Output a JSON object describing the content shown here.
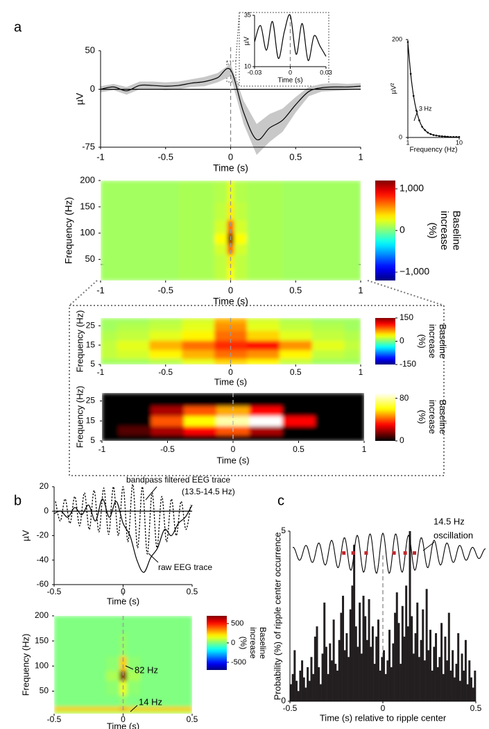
{
  "chart_data": [
    {
      "type": "line",
      "panel": "a",
      "xlabel": "Time (s)",
      "ylabel": "µV",
      "xlim": [
        -1,
        1
      ],
      "xticks": [
        -1,
        -0.5,
        0,
        0.5,
        1
      ],
      "ylim": [
        -75,
        50
      ],
      "yticks": [
        -75,
        0,
        50
      ],
      "series": [
        {
          "color": "#000000",
          "band_color": "#c8c8c8",
          "x": [
            -1,
            -0.9,
            -0.8,
            -0.7,
            -0.6,
            -0.5,
            -0.4,
            -0.3,
            -0.2,
            -0.1,
            0,
            0.1,
            0.2,
            0.3,
            0.4,
            0.5,
            0.6,
            0.7,
            0.8,
            0.9,
            1
          ],
          "values": [
            0,
            3,
            -2,
            5,
            5,
            4,
            5,
            8,
            10,
            15,
            25,
            -30,
            -65,
            -50,
            -40,
            -20,
            -3,
            2,
            3,
            3,
            4
          ],
          "error": [
            4,
            4,
            5,
            5,
            5,
            5,
            5,
            5,
            6,
            6,
            8,
            15,
            20,
            18,
            15,
            10,
            6,
            5,
            5,
            4,
            4
          ]
        }
      ]
    },
    {
      "type": "line",
      "xlabel": "Time (s)",
      "ylabel": "µV",
      "xlim": [
        -0.03,
        0.03
      ],
      "xticks": [
        -0.03,
        0,
        0.03
      ],
      "ylim": [
        10,
        35
      ],
      "yticks": [
        10,
        35
      ],
      "series": [
        {
          "color": "#000000",
          "x": [
            -0.03,
            -0.025,
            -0.02,
            -0.015,
            -0.01,
            -0.005,
            0,
            0.005,
            0.01,
            0.015,
            0.02,
            0.025,
            0.03
          ],
          "values": [
            22,
            30,
            18,
            32,
            14,
            27,
            35,
            16,
            31,
            13,
            25,
            20,
            15
          ]
        }
      ]
    },
    {
      "type": "line",
      "xlabel": "Frequency (Hz)",
      "ylabel": "µV²",
      "markers": true,
      "annotations": [
        "3 Hz"
      ],
      "xlim": [
        1,
        10
      ],
      "xticks": [
        1,
        10
      ],
      "ylim": [
        0,
        200
      ],
      "yticks": [
        0,
        200
      ],
      "series": [
        {
          "color": "#000000",
          "x": [
            1,
            1.5,
            2,
            2.5,
            3,
            3.5,
            4,
            4.5,
            5,
            5.5,
            6,
            6.5,
            7,
            7.5,
            8,
            8.5,
            9,
            9.5,
            10
          ],
          "values": [
            195,
            130,
            85,
            55,
            35,
            22,
            15,
            10,
            7,
            5,
            4,
            3,
            2.5,
            2,
            1.5,
            1,
            1,
            1,
            1
          ]
        }
      ]
    },
    {
      "type": "heatmap",
      "xlabel": "Time (s)",
      "ylabel": "Frequency (Hz)",
      "colormap": "jet",
      "xlim": [
        -1,
        1
      ],
      "xticks": [
        -1,
        -0.5,
        0,
        0.5,
        1
      ],
      "ylim": [
        10,
        200
      ],
      "yticks": [
        50,
        100,
        150,
        200
      ],
      "clim": [
        -1200,
        1200
      ],
      "cticks": [
        {
          "value": 1000,
          "label": "1,000"
        },
        0,
        {
          "value": -1000,
          "label": "−1,000"
        }
      ],
      "cbar_label": [
        "Baseline",
        "increase",
        "(%)"
      ],
      "x": [
        -1,
        -0.6,
        -0.2,
        -0.05,
        0,
        0.05,
        0.2,
        0.6,
        1
      ],
      "y": [
        20,
        50,
        70,
        90,
        110,
        140,
        180
      ],
      "values": [
        [
          80,
          80,
          100,
          150,
          300,
          150,
          100,
          80,
          80
        ],
        [
          80,
          80,
          100,
          150,
          350,
          150,
          100,
          80,
          80
        ],
        [
          80,
          80,
          100,
          200,
          700,
          200,
          100,
          80,
          80
        ],
        [
          80,
          80,
          100,
          300,
          1200,
          300,
          100,
          80,
          80
        ],
        [
          80,
          80,
          100,
          200,
          700,
          200,
          100,
          80,
          80
        ],
        [
          80,
          80,
          100,
          150,
          350,
          150,
          100,
          80,
          80
        ],
        [
          80,
          80,
          100,
          120,
          250,
          120,
          100,
          80,
          80
        ]
      ]
    },
    {
      "type": "heatmap",
      "xlabel": "Time (s)",
      "ylabel": "Frequency (Hz)",
      "colormap": "jet",
      "xlim": [
        -1,
        1
      ],
      "xticks": [
        -1,
        -0.5,
        0,
        0.5,
        1
      ],
      "ylim": [
        5,
        29
      ],
      "yticks": [
        5,
        15,
        25
      ],
      "clim": [
        -150,
        150
      ],
      "cticks": [
        150,
        0,
        -150
      ],
      "cbar_label": [
        "Baseline",
        "increase",
        "(%)"
      ],
      "x": [
        -1,
        -0.75,
        -0.5,
        -0.25,
        0,
        0.25,
        0.5,
        0.75,
        1
      ],
      "y": [
        6,
        10,
        15,
        20,
        25,
        28
      ],
      "values": [
        [
          10,
          10,
          15,
          30,
          50,
          40,
          20,
          10,
          10
        ],
        [
          20,
          25,
          40,
          60,
          80,
          70,
          40,
          20,
          15
        ],
        [
          20,
          30,
          60,
          80,
          100,
          110,
          70,
          30,
          20
        ],
        [
          15,
          20,
          30,
          40,
          80,
          50,
          30,
          20,
          15
        ],
        [
          10,
          15,
          20,
          30,
          70,
          30,
          20,
          15,
          10
        ],
        [
          10,
          10,
          15,
          25,
          60,
          25,
          15,
          10,
          10
        ]
      ]
    },
    {
      "type": "heatmap",
      "xlabel": "Time (s)",
      "ylabel": "Frequency (Hz)",
      "colormap": "hot",
      "xlim": [
        -1,
        1
      ],
      "xticks": [
        -1,
        -0.5,
        0,
        0.5,
        1
      ],
      "ylim": [
        5,
        29
      ],
      "yticks": [
        5,
        15,
        25
      ],
      "clim": [
        0,
        90
      ],
      "cticks": [
        80,
        0
      ],
      "cbar_label": [
        "Baseline",
        "increase",
        "(%)"
      ],
      "x": [
        -1,
        -0.75,
        -0.5,
        -0.25,
        0,
        0.25,
        0.5,
        0.75,
        1
      ],
      "y": [
        6,
        10,
        15,
        20,
        25,
        28
      ],
      "values": [
        [
          0,
          0,
          0,
          0,
          0,
          0,
          0,
          0,
          0
        ],
        [
          0,
          10,
          20,
          30,
          40,
          20,
          0,
          0,
          0
        ],
        [
          0,
          0,
          40,
          60,
          80,
          90,
          30,
          0,
          0
        ],
        [
          0,
          0,
          20,
          40,
          50,
          30,
          0,
          0,
          0
        ],
        [
          0,
          0,
          0,
          0,
          0,
          0,
          0,
          0,
          0
        ],
        [
          0,
          0,
          0,
          0,
          0,
          0,
          0,
          0,
          0
        ]
      ]
    },
    {
      "type": "line",
      "panel": "b",
      "xlabel": "Time (s)",
      "ylabel": "µV",
      "xlim": [
        -0.5,
        0.5
      ],
      "xticks": [
        -0.5,
        0,
        0.5
      ],
      "ylim": [
        -60,
        20
      ],
      "yticks": [
        -60,
        -40,
        -20,
        0,
        20
      ],
      "series": [
        {
          "name": "raw EEG trace",
          "color": "#000000",
          "style": "solid",
          "x": [
            -0.5,
            -0.45,
            -0.4,
            -0.35,
            -0.3,
            -0.25,
            -0.2,
            -0.15,
            -0.1,
            -0.05,
            0,
            0.05,
            0.1,
            0.15,
            0.2,
            0.25,
            0.3,
            0.35,
            0.4,
            0.45,
            0.5
          ],
          "values": [
            -2,
            0,
            -5,
            3,
            -3,
            5,
            -8,
            10,
            -5,
            8,
            -10,
            -20,
            -40,
            -50,
            -38,
            -30,
            -15,
            -20,
            -10,
            -5,
            5
          ]
        },
        {
          "name": "bandpass filtered EEG trace",
          "band": "(13.5-14.5 Hz)",
          "color": "#000000",
          "style": "dotted",
          "x": [
            -0.49,
            -0.455,
            -0.42,
            -0.385,
            -0.35,
            -0.315,
            -0.28,
            -0.245,
            -0.21,
            -0.175,
            -0.14,
            -0.105,
            -0.07,
            -0.035,
            0,
            0.035,
            0.07,
            0.105,
            0.14,
            0.175,
            0.21,
            0.245,
            0.28,
            0.315,
            0.35,
            0.385,
            0.42,
            0.455,
            0.49
          ],
          "values": [
            8,
            -8,
            10,
            -10,
            12,
            -12,
            15,
            -15,
            17,
            -17,
            19,
            -19,
            20,
            -20,
            20,
            -25,
            22,
            -30,
            20,
            -35,
            15,
            -30,
            12,
            -25,
            10,
            -20,
            8,
            -15,
            5
          ]
        }
      ]
    },
    {
      "type": "heatmap",
      "xlabel": "Time (s)",
      "ylabel": "Frequency (Hz)",
      "colormap": "jet",
      "annotations": [
        "82 Hz",
        "14 Hz"
      ],
      "xlim": [
        -0.5,
        0.5
      ],
      "xticks": [
        -0.5,
        0,
        0.5
      ],
      "ylim": [
        5,
        200
      ],
      "yticks": [
        50,
        100,
        150,
        200
      ],
      "clim": [
        -700,
        700
      ],
      "cticks": [
        500,
        0,
        -500
      ],
      "cbar_label": [
        "Baseline",
        "increase",
        "(%)"
      ],
      "x": [
        -0.5,
        -0.2,
        -0.05,
        0,
        0.05,
        0.2,
        0.5
      ],
      "y": [
        8,
        14,
        25,
        60,
        82,
        100,
        140,
        190
      ],
      "values": [
        [
          60,
          60,
          60,
          60,
          60,
          60,
          60
        ],
        [
          250,
          250,
          250,
          300,
          250,
          250,
          250
        ],
        [
          0,
          0,
          0,
          30,
          0,
          0,
          0
        ],
        [
          0,
          0,
          20,
          150,
          20,
          0,
          0
        ],
        [
          0,
          0,
          60,
          700,
          60,
          0,
          0
        ],
        [
          0,
          0,
          20,
          250,
          20,
          0,
          0
        ],
        [
          0,
          0,
          0,
          30,
          0,
          0,
          0
        ],
        [
          0,
          0,
          0,
          0,
          0,
          0,
          0
        ]
      ]
    },
    {
      "type": "histogram",
      "panel": "c",
      "xlabel": "Time (s) relative to ripple center",
      "ylabel": "Probability (%) of ripple center occurrence",
      "annotations": [
        "14.5 Hz",
        "oscillation"
      ],
      "color": "#231f20",
      "marker_color": "#c0282d",
      "markers_x": [
        -0.21,
        -0.16,
        -0.09,
        0.06,
        0.12,
        0.17
      ],
      "xlim": [
        -0.5,
        0.5
      ],
      "xticks": [
        -0.5,
        0,
        0.5
      ],
      "ylim": [
        0,
        5
      ],
      "yticks": [
        0,
        5
      ],
      "bins": [
        -0.5,
        -0.49,
        -0.48,
        -0.47,
        -0.46,
        -0.45,
        -0.44,
        -0.43,
        -0.42,
        -0.41,
        -0.4,
        -0.39,
        -0.38,
        -0.37,
        -0.36,
        -0.35,
        -0.34,
        -0.33,
        -0.32,
        -0.31,
        -0.3,
        -0.29,
        -0.28,
        -0.27,
        -0.26,
        -0.25,
        -0.24,
        -0.23,
        -0.22,
        -0.21,
        -0.2,
        -0.19,
        -0.18,
        -0.17,
        -0.16,
        -0.15,
        -0.14,
        -0.13,
        -0.12,
        -0.11,
        -0.1,
        -0.09,
        -0.08,
        -0.07,
        -0.06,
        -0.05,
        -0.04,
        -0.03,
        -0.02,
        -0.01,
        0,
        0.01,
        0.02,
        0.03,
        0.04,
        0.05,
        0.06,
        0.07,
        0.08,
        0.09,
        0.1,
        0.11,
        0.12,
        0.13,
        0.14,
        0.15,
        0.16,
        0.17,
        0.18,
        0.19,
        0.2,
        0.21,
        0.22,
        0.23,
        0.24,
        0.25,
        0.26,
        0.27,
        0.28,
        0.29,
        0.3,
        0.31,
        0.32,
        0.33,
        0.34,
        0.35,
        0.36,
        0.37,
        0.38,
        0.39,
        0.4,
        0.41,
        0.42,
        0.43,
        0.44,
        0.45,
        0.46,
        0.47,
        0.48,
        0.49,
        0.5
      ],
      "values": [
        0.5,
        0.8,
        1.5,
        0.6,
        0.3,
        0.9,
        1.2,
        0.7,
        0.4,
        1.0,
        0.6,
        1.3,
        0.8,
        1.9,
        2.2,
        1.0,
        0.5,
        1.4,
        2.9,
        1.6,
        0.8,
        1.7,
        1.2,
        2.4,
        1.1,
        0.9,
        1.8,
        2.6,
        3.1,
        1.5,
        2.0,
        1.3,
        2.7,
        3.4,
        4.6,
        2.2,
        1.6,
        2.9,
        1.4,
        3.1,
        2.5,
        1.8,
        3.0,
        1.6,
        2.2,
        1.1,
        1.9,
        2.4,
        0.9,
        1.3,
        1.5,
        0.8,
        1.2,
        2.1,
        1.0,
        1.7,
        2.6,
        3.2,
        2.3,
        1.1,
        2.8,
        1.9,
        3.4,
        2.2,
        5.0,
        2.5,
        1.4,
        2.0,
        2.9,
        1.3,
        1.8,
        2.7,
        1.2,
        3.3,
        1.5,
        2.1,
        0.9,
        1.6,
        2.0,
        1.0,
        1.3,
        2.3,
        0.8,
        1.9,
        1.2,
        2.6,
        0.9,
        1.5,
        0.7,
        1.1,
        2.0,
        0.6,
        1.4,
        0.9,
        1.8,
        0.5,
        1.2,
        0.7,
        0.4,
        0.9
      ]
    }
  ]
}
